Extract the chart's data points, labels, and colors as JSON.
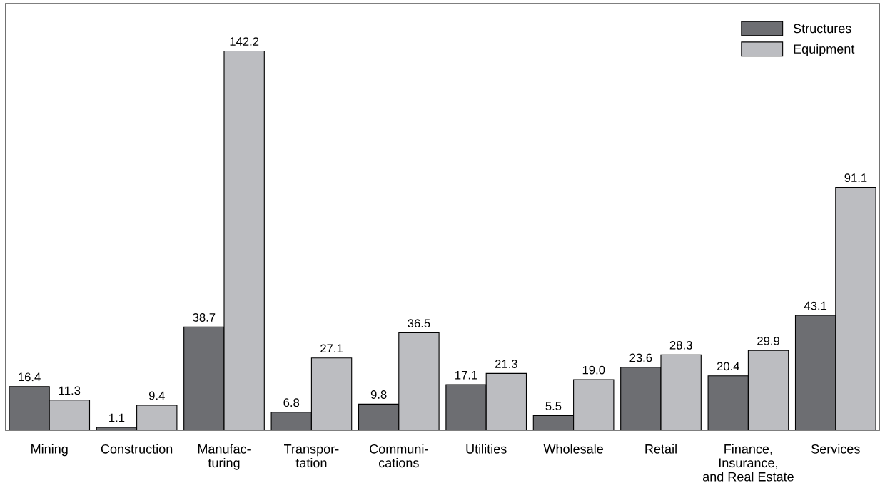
{
  "chart_data": {
    "type": "bar",
    "categories": [
      "Mining",
      "Construction",
      "Manufac-\nturing",
      "Transpor-\ntation",
      "Communi-\ncations",
      "Utilities",
      "Wholesale",
      "Retail",
      "Finance,\nInsurance,\nand Real Estate",
      "Services"
    ],
    "series": [
      {
        "name": "Structures",
        "color": "#6d6e72",
        "values": [
          16.4,
          1.1,
          38.7,
          6.8,
          9.8,
          17.1,
          5.5,
          23.6,
          20.4,
          43.1
        ],
        "value_labels": [
          "16.4",
          "1.1",
          "38.7",
          "6.8",
          "9.8",
          "17.1",
          "5.5",
          "23.6",
          "20.4",
          "43.1"
        ]
      },
      {
        "name": "Equipment",
        "color": "#bcbdc1",
        "values": [
          11.3,
          9.4,
          142.2,
          27.1,
          36.5,
          21.3,
          19.0,
          28.3,
          29.9,
          91.1
        ],
        "value_labels": [
          "11.3",
          "9.4",
          "142.2",
          "27.1",
          "36.5",
          "21.3",
          "19.0",
          "28.3",
          "29.9",
          "91.1"
        ]
      }
    ],
    "legend": "top right",
    "grid": false,
    "tick_labels": "x"
  }
}
